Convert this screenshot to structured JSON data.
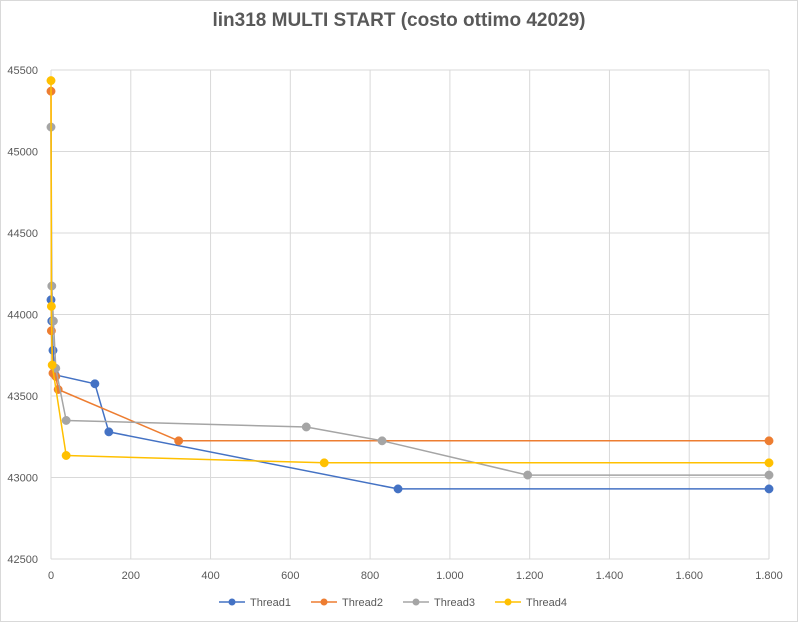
{
  "chart_data": {
    "type": "scatter",
    "title": "lin318 MULTI START (costo ottimo 42029)",
    "xlabel": "",
    "ylabel": "",
    "xlim": [
      0,
      1800
    ],
    "ylim": [
      42500,
      45500
    ],
    "x_ticks": [
      0,
      200,
      400,
      600,
      800,
      1000,
      1200,
      1400,
      1600,
      1800
    ],
    "x_tick_labels": [
      "0",
      "200",
      "400",
      "600",
      "800",
      "1.000",
      "1.200",
      "1.400",
      "1.600",
      "1.800"
    ],
    "y_ticks": [
      42500,
      43000,
      43500,
      44000,
      44500,
      45000,
      45500
    ],
    "y_tick_labels": [
      "42500",
      "43000",
      "43500",
      "44000",
      "44500",
      "45000",
      "45500"
    ],
    "grid": true,
    "legend_position": "bottom",
    "series": [
      {
        "name": "Thread1",
        "color": "#4472c4",
        "x": [
          0,
          2,
          5,
          10,
          110,
          145,
          870,
          1800
        ],
        "y": [
          44090,
          43960,
          43780,
          43630,
          43575,
          43280,
          42930,
          42930
        ]
      },
      {
        "name": "Thread2",
        "color": "#ed7d31",
        "x": [
          0,
          1,
          5,
          12,
          18,
          320,
          1800
        ],
        "y": [
          45370,
          43900,
          43640,
          43620,
          43540,
          43225,
          43225
        ]
      },
      {
        "name": "Thread3",
        "color": "#a5a5a5",
        "x": [
          0,
          2,
          6,
          12,
          38,
          640,
          830,
          1195,
          1800
        ],
        "y": [
          45150,
          44175,
          43960,
          43670,
          43350,
          43310,
          43225,
          43015,
          43015
        ]
      },
      {
        "name": "Thread4",
        "color": "#ffc000",
        "x": [
          0,
          1,
          3,
          38,
          685,
          1800
        ],
        "y": [
          45435,
          44050,
          43690,
          43135,
          43090,
          43090
        ]
      }
    ]
  }
}
